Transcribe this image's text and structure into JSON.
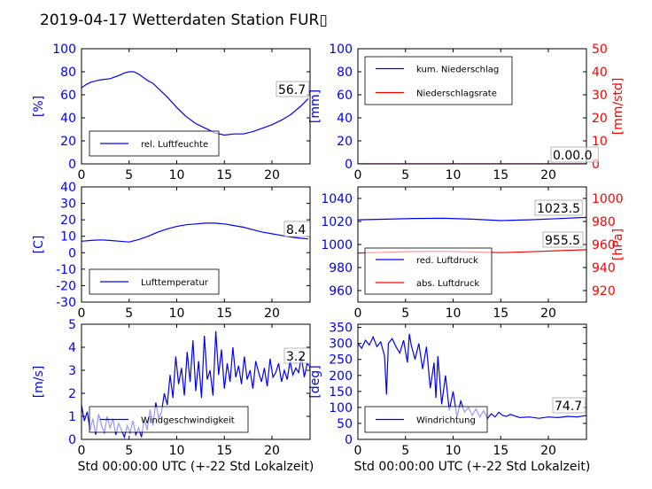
{
  "title": "2019-04-17 Wetterdaten Station FUR▯",
  "colors": {
    "primary": "#0000ff",
    "secondary": "#ff0000",
    "axis": "#000000"
  },
  "chart_data": [
    {
      "id": "humidity",
      "type": "line",
      "xlim": [
        0,
        24
      ],
      "ylim": [
        0,
        100
      ],
      "yticks": [
        0,
        20,
        40,
        60,
        80,
        100
      ],
      "xticks": [
        0,
        5,
        10,
        15,
        20
      ],
      "ylabel": "[%]",
      "annotation": "56.7",
      "series": [
        {
          "name": "rel. Luftfeuchte",
          "color": "#0000ff",
          "x": [
            0,
            0.5,
            1,
            2,
            3,
            4,
            4.5,
            5,
            5.5,
            6,
            6.5,
            7,
            7.5,
            8,
            9,
            10,
            11,
            12,
            13,
            14,
            15,
            16,
            17,
            18,
            19,
            20,
            21,
            22,
            23,
            23.8
          ],
          "y": [
            66,
            69,
            71,
            73,
            74,
            77,
            79,
            80,
            80,
            78,
            75,
            72,
            70,
            66,
            58,
            49,
            41,
            35,
            31,
            27,
            25,
            26,
            26,
            28,
            31,
            34,
            38,
            43,
            50,
            56.7
          ]
        }
      ]
    },
    {
      "id": "precipitation",
      "type": "line",
      "xlim": [
        0,
        24
      ],
      "ylim": [
        0,
        100
      ],
      "yticks": [
        0,
        20,
        40,
        60,
        80,
        100
      ],
      "xticks": [
        0,
        5,
        10,
        15,
        20
      ],
      "ylabel": "[mm]",
      "ylim2": [
        0,
        50
      ],
      "yticks2": [
        0,
        10,
        20,
        30,
        40,
        50
      ],
      "ylabel2": "[mm/std]",
      "annotation": "0.00.0",
      "series": [
        {
          "name": "kum. Niederschlag",
          "color": "#0000ff",
          "x": [
            0,
            24
          ],
          "y": [
            0,
            0
          ]
        },
        {
          "name": "Niederschlagsrate",
          "color": "#ff0000",
          "x": [
            0,
            24
          ],
          "y": [
            0,
            0
          ]
        }
      ]
    },
    {
      "id": "temperature",
      "type": "line",
      "xlim": [
        0,
        24
      ],
      "ylim": [
        -30,
        40
      ],
      "yticks": [
        -30,
        -20,
        -10,
        0,
        10,
        20,
        30,
        40
      ],
      "xticks": [
        0,
        5,
        10,
        15,
        20
      ],
      "ylabel": "[C]",
      "annotation": "8.4",
      "series": [
        {
          "name": "Lufttemperatur",
          "color": "#0000ff",
          "x": [
            0,
            1,
            2,
            3,
            4,
            5,
            6,
            7,
            8,
            9,
            10,
            11,
            12,
            13,
            14,
            15,
            16,
            17,
            18,
            19,
            20,
            21,
            22,
            23,
            23.8
          ],
          "y": [
            7,
            7.5,
            7.8,
            7.5,
            7,
            6.5,
            8,
            10,
            12.5,
            14.5,
            16,
            17,
            17.5,
            18,
            18,
            17.5,
            16.5,
            15.5,
            14,
            12.5,
            11.5,
            10.5,
            9.5,
            8.8,
            8.4
          ]
        }
      ]
    },
    {
      "id": "pressure",
      "type": "line",
      "xlim": [
        0,
        24
      ],
      "ylim": [
        950,
        1050
      ],
      "yticks": [
        960,
        980,
        1000,
        1020,
        1040
      ],
      "xticks": [
        0,
        5,
        10,
        15,
        20
      ],
      "ylim2": [
        910,
        1010
      ],
      "yticks2": [
        920,
        940,
        960,
        980,
        1000
      ],
      "ylabel2": "[hPa]",
      "annotation": "1023.5",
      "annotation2": "955.5",
      "series": [
        {
          "name": "red. Luftdruck",
          "color": "#0000ff",
          "x": [
            0,
            3,
            6,
            9,
            12,
            15,
            18,
            21,
            24
          ],
          "y": [
            1021.5,
            1022,
            1022.6,
            1022.8,
            1022,
            1020.8,
            1021.5,
            1022.5,
            1023.5
          ]
        },
        {
          "name": "abs. Luftdruck",
          "color": "#ff0000",
          "axis": "secondary",
          "x": [
            0,
            3,
            6,
            9,
            12,
            15,
            18,
            21,
            24
          ],
          "y": [
            952.6,
            953.3,
            953.9,
            954.1,
            953.6,
            952.9,
            953.7,
            954.6,
            955.5
          ]
        }
      ]
    },
    {
      "id": "wind-speed",
      "type": "line",
      "xlim": [
        0,
        24
      ],
      "ylim": [
        0,
        5
      ],
      "yticks": [
        0,
        1,
        2,
        3,
        4,
        5
      ],
      "xticks": [
        0,
        5,
        10,
        15,
        20
      ],
      "ylabel": "[m/s]",
      "xlabel": "Std 00:00:00 UTC (+-22 Std Lokalzeit)",
      "annotation": "3.2",
      "series": [
        {
          "name": "Windgeschwindigkeit",
          "color": "#0000ff",
          "x": [
            0,
            0.3,
            0.6,
            0.9,
            1.2,
            1.5,
            1.8,
            2.1,
            2.4,
            2.7,
            3,
            3.3,
            3.6,
            3.9,
            4.2,
            4.5,
            4.8,
            5.1,
            5.4,
            5.7,
            6,
            6.3,
            6.6,
            6.9,
            7.2,
            7.5,
            7.8,
            8.1,
            8.4,
            8.7,
            9,
            9.3,
            9.6,
            9.9,
            10.2,
            10.5,
            10.8,
            11.1,
            11.4,
            11.7,
            12,
            12.3,
            12.6,
            12.9,
            13.2,
            13.5,
            13.8,
            14.1,
            14.4,
            14.7,
            15,
            15.3,
            15.6,
            15.9,
            16.2,
            16.5,
            16.8,
            17.1,
            17.4,
            17.7,
            18,
            18.3,
            18.6,
            18.9,
            19.2,
            19.5,
            19.8,
            20.1,
            20.4,
            20.7,
            21,
            21.3,
            21.6,
            21.9,
            22.2,
            22.5,
            22.8,
            23.1,
            23.4,
            23.7,
            23.9
          ],
          "y": [
            1.5,
            0.8,
            1.2,
            0.4,
            0.9,
            0.2,
            1.1,
            0.6,
            0.3,
            1.0,
            0.5,
            0.9,
            0.2,
            0.7,
            0.4,
            0.1,
            0.6,
            0.3,
            0.8,
            0.2,
            0.5,
            0.1,
            0.9,
            0.4,
            1.3,
            0.6,
            1.6,
            0.9,
            1.2,
            2.0,
            1.5,
            2.8,
            1.8,
            3.6,
            2.4,
            3.1,
            1.9,
            3.8,
            2.5,
            4.3,
            2.1,
            3.4,
            1.8,
            4.5,
            2.6,
            3.0,
            1.9,
            4.7,
            2.8,
            3.9,
            2.2,
            3.3,
            2.5,
            4.0,
            2.7,
            3.2,
            2.4,
            3.6,
            2.6,
            3.0,
            2.2,
            3.4,
            2.9,
            2.5,
            3.1,
            2.3,
            3.5,
            2.7,
            2.9,
            3.3,
            2.5,
            3.0,
            2.6,
            3.4,
            2.8,
            3.1,
            2.9,
            3.6,
            2.7,
            3.3,
            3.2
          ]
        }
      ]
    },
    {
      "id": "wind-direction",
      "type": "line",
      "xlim": [
        0,
        24
      ],
      "ylim": [
        0,
        360
      ],
      "yticks": [
        0,
        50,
        100,
        150,
        200,
        250,
        300,
        350
      ],
      "xticks": [
        0,
        5,
        10,
        15,
        20
      ],
      "ylabel": "[deg]",
      "xlabel": "Std 00:00:00 UTC (+-22 Std Lokalzeit)",
      "annotation": "74.7",
      "series": [
        {
          "name": "Windrichtung",
          "color": "#0000ff",
          "x": [
            0,
            0.4,
            0.8,
            1.2,
            1.6,
            2.0,
            2.4,
            2.8,
            3.0,
            3.2,
            3.6,
            4.0,
            4.4,
            4.8,
            5.2,
            5.4,
            5.6,
            6.0,
            6.4,
            6.8,
            7.2,
            7.6,
            8.0,
            8.2,
            8.4,
            8.8,
            9.2,
            9.6,
            10.0,
            10.4,
            10.8,
            11.2,
            11.6,
            12.0,
            12.4,
            12.8,
            13.2,
            13.6,
            14.0,
            14.4,
            14.8,
            15.2,
            15.6,
            16.0,
            17,
            18,
            19,
            20,
            21,
            22,
            23,
            24
          ],
          "y": [
            300,
            285,
            310,
            295,
            320,
            290,
            305,
            260,
            140,
            300,
            315,
            290,
            270,
            310,
            240,
            330,
            295,
            250,
            300,
            220,
            290,
            160,
            240,
            130,
            260,
            110,
            200,
            90,
            150,
            70,
            120,
            85,
            100,
            75,
            95,
            70,
            90,
            65,
            80,
            70,
            85,
            75,
            72,
            78,
            68,
            70,
            66,
            70,
            68,
            72,
            70,
            74.7
          ]
        }
      ]
    }
  ]
}
